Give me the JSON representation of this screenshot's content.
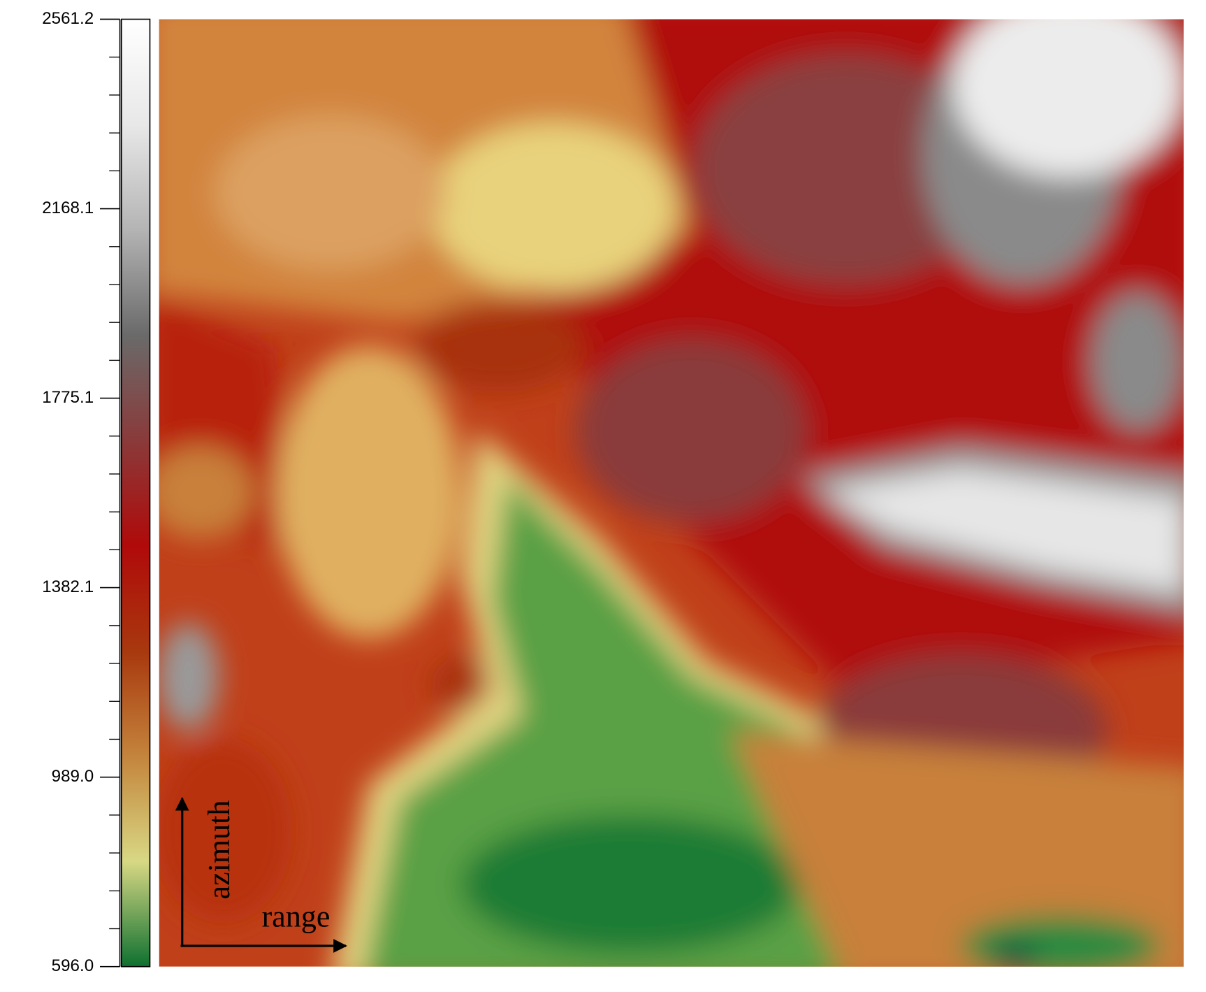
{
  "chart_data": {
    "type": "heatmap",
    "ylim": [
      596.0,
      2561.2
    ],
    "yticks": [
      {
        "value": 596.0,
        "label": "596.0"
      },
      {
        "value": 989.0,
        "label": "989.0"
      },
      1382.1,
      1775.1,
      2168.1,
      2561.2
    ],
    "colormap": [
      "#0e7030",
      "#d8d884",
      "#c4843c",
      "#a8380e",
      "#b00a0a",
      "#8a3a3a",
      "#6a6a6a",
      "#b4b4b4",
      "#e8e8e8",
      "#ffffff"
    ],
    "annotations": [
      "azimuth",
      "range"
    ]
  }
}
